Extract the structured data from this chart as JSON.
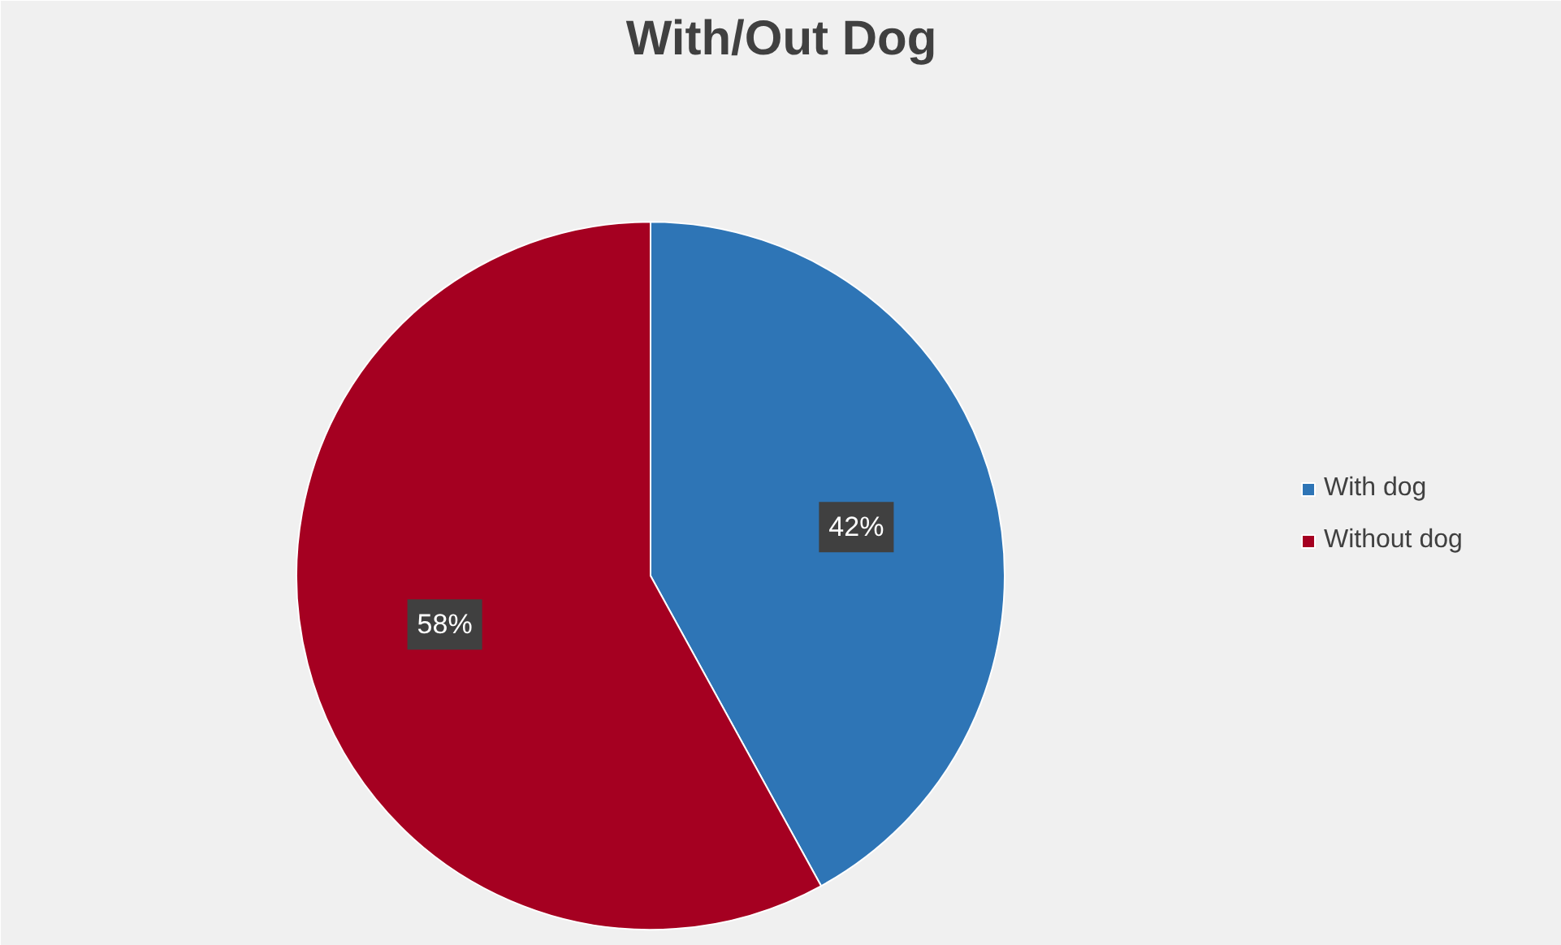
{
  "chart_data": {
    "type": "pie",
    "title": "With/Out Dog",
    "categories": [
      "With dog",
      "Without dog"
    ],
    "values": [
      42,
      58
    ],
    "colors": [
      "#2e75b6",
      "#a50021"
    ],
    "value_labels": [
      "42%",
      "58%"
    ],
    "legend": "right"
  }
}
